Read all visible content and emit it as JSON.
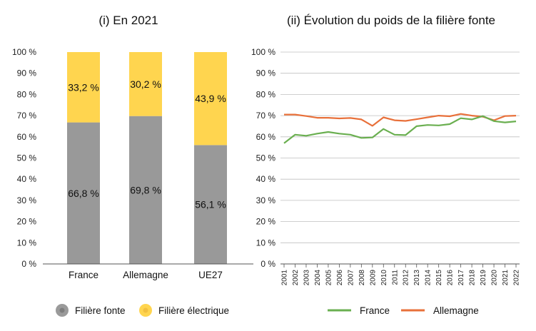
{
  "chart_data": [
    {
      "type": "bar",
      "stacked": true,
      "title": "(i) En 2021",
      "categories": [
        "France",
        "Allemagne",
        "UE27"
      ],
      "series": [
        {
          "name": "Filière fonte",
          "values": [
            66.8,
            69.8,
            56.1
          ],
          "labels": [
            "66,8 %",
            "69,8 %",
            "56,1 %"
          ],
          "color": "#999999"
        },
        {
          "name": "Filière électrique",
          "values": [
            33.2,
            30.2,
            43.9
          ],
          "labels": [
            "33,2 %",
            "30,2 %",
            "43,9 %"
          ],
          "color": "#FFD54F"
        }
      ],
      "ylim": [
        0,
        100
      ],
      "yticks": [
        "0 %",
        "10 %",
        "20 %",
        "30 %",
        "40 %",
        "50 %",
        "60 %",
        "70 %",
        "80 %",
        "90 %",
        "100 %"
      ],
      "legend_position": "bottom"
    },
    {
      "type": "line",
      "title": "(ii) Évolution du poids de la filière fonte",
      "x": [
        "2001",
        "2002",
        "2003",
        "2004",
        "2005",
        "2006",
        "2007",
        "2008",
        "2009",
        "2010",
        "2011",
        "2012",
        "2013",
        "2014",
        "2015",
        "2016",
        "2017",
        "2018",
        "2019",
        "2020",
        "2021",
        "2022"
      ],
      "series": [
        {
          "name": "France",
          "color": "#6AAF50",
          "values": [
            57,
            61,
            60.5,
            61.5,
            62.3,
            61.5,
            61,
            59.5,
            59.7,
            63.7,
            61,
            60.8,
            65,
            65.6,
            65.4,
            66,
            68.8,
            68.2,
            69.8,
            67.4,
            66.8,
            67.3
          ]
        },
        {
          "name": "Allemagne",
          "color": "#E8703A",
          "values": [
            70.5,
            70.5,
            69.8,
            69,
            69,
            68.7,
            68.9,
            68.2,
            65.2,
            69.2,
            67.8,
            67.5,
            68.3,
            69.2,
            70,
            69.7,
            70.8,
            70,
            69.5,
            67.8,
            69.8,
            70
          ]
        }
      ],
      "ylim": [
        0,
        100
      ],
      "yticks": [
        "0 %",
        "10 %",
        "20 %",
        "30 %",
        "40 %",
        "50 %",
        "60 %",
        "70 %",
        "80 %",
        "90 %",
        "100 %"
      ],
      "grid": true,
      "legend_position": "bottom"
    }
  ]
}
